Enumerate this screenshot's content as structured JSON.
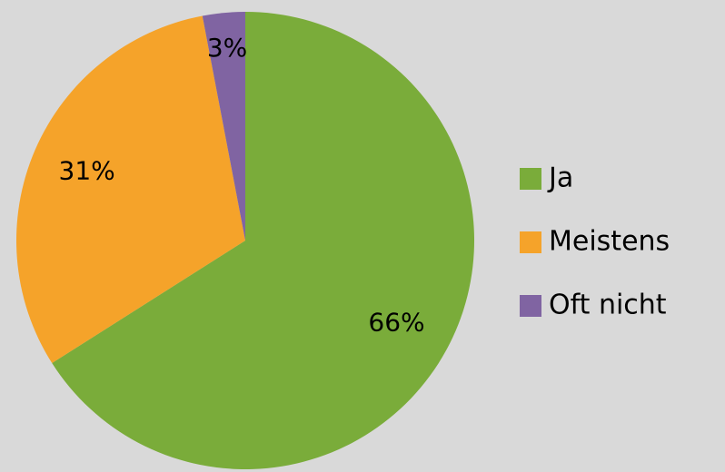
{
  "chart_data": {
    "type": "pie",
    "categories": [
      "Ja",
      "Meistens",
      "Oft nicht"
    ],
    "values": [
      66,
      31,
      3
    ],
    "value_labels": [
      "66%",
      "31%",
      "3%"
    ],
    "colors": [
      "#7aac3a",
      "#f5a32a",
      "#8064a2"
    ],
    "legend": "right"
  }
}
